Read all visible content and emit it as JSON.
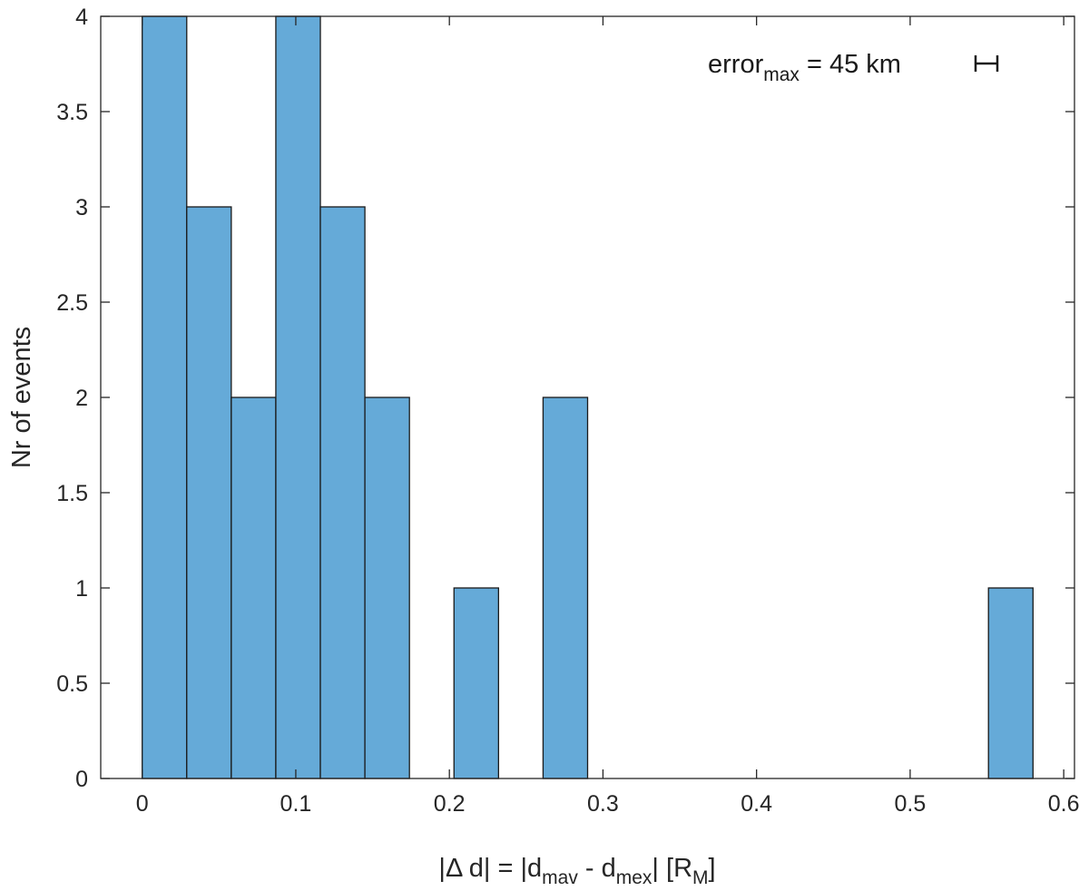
{
  "chart_data": {
    "type": "bar",
    "subtype": "histogram",
    "bin_width": 0.029,
    "bins": [
      {
        "x0": 0.0,
        "x1": 0.029,
        "count": 4
      },
      {
        "x0": 0.029,
        "x1": 0.058,
        "count": 3
      },
      {
        "x0": 0.058,
        "x1": 0.087,
        "count": 2
      },
      {
        "x0": 0.087,
        "x1": 0.116,
        "count": 4
      },
      {
        "x0": 0.116,
        "x1": 0.145,
        "count": 3
      },
      {
        "x0": 0.145,
        "x1": 0.174,
        "count": 2
      },
      {
        "x0": 0.203,
        "x1": 0.232,
        "count": 1
      },
      {
        "x0": 0.261,
        "x1": 0.29,
        "count": 2
      },
      {
        "x0": 0.551,
        "x1": 0.58,
        "count": 1
      }
    ],
    "xlim": [
      -0.027,
      0.607
    ],
    "ylim": [
      0,
      4
    ],
    "xticks": [
      "0",
      "0.1",
      "0.2",
      "0.3",
      "0.4",
      "0.5",
      "0.6"
    ],
    "yticks": [
      "0",
      "0.5",
      "1",
      "1.5",
      "2",
      "2.5",
      "3",
      "3.5",
      "4"
    ],
    "ylabel": "Nr of events",
    "xlabel": {
      "part1": "|Δ d| = |d",
      "sub1": "mav",
      "part2": " - d",
      "sub2": "mex",
      "part3": "| [R",
      "sub3": "M",
      "part4": "]"
    },
    "annotation": {
      "prefix": "error",
      "sub": "max",
      "suffix": " = 45 km"
    },
    "grid": false,
    "bar_color": "#65aad8",
    "edge_color": "#1a1a1a"
  }
}
